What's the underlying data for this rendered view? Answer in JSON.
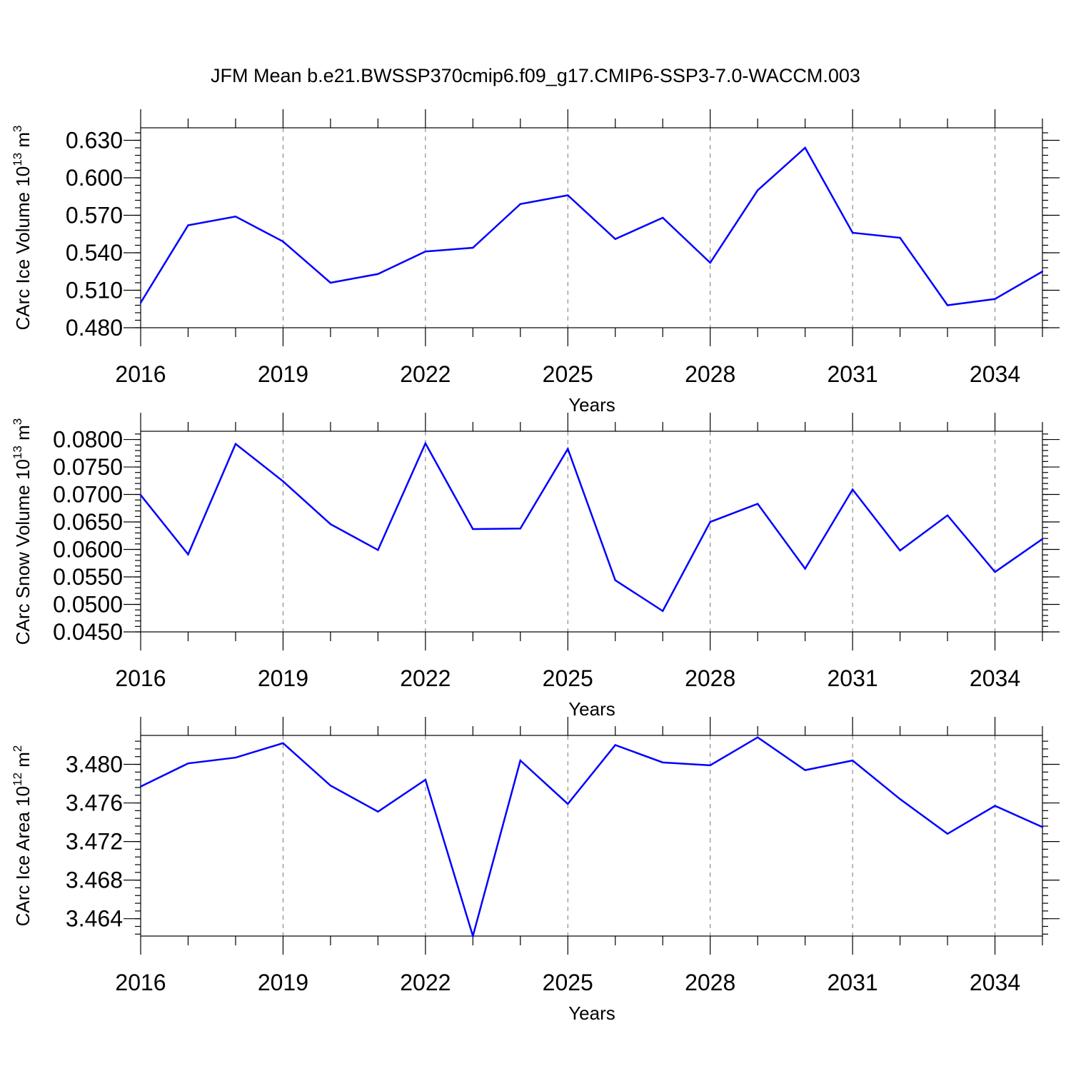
{
  "figure": {
    "title": "JFM Mean b.e21.BWSSP370cmip6.f09_g17.CMIP6-SSP3-7.0-WACCM.003",
    "line_color": "#0000ff"
  },
  "chart_data": [
    {
      "type": "line",
      "ylabel_main": "CArc Ice Volume 10",
      "ylabel_exp1": "13",
      "ylabel_unit": " m",
      "ylabel_exp2": "3",
      "xlabel": "Years",
      "xlim": [
        2016,
        2035
      ],
      "ylim": [
        0.48,
        0.64
      ],
      "yticks": [
        0.48,
        0.51,
        0.54,
        0.57,
        0.6,
        0.63
      ],
      "ytick_labels": [
        "0.480",
        "0.510",
        "0.540",
        "0.570",
        "0.600",
        "0.630"
      ],
      "yminor_step": 0.006,
      "xticks": [
        2016,
        2019,
        2022,
        2025,
        2028,
        2031,
        2034
      ],
      "xtick_labels": [
        "2016",
        "2019",
        "2022",
        "2025",
        "2028",
        "2031",
        "2034"
      ],
      "x": [
        2016,
        2017,
        2018,
        2019,
        2020,
        2021,
        2022,
        2023,
        2024,
        2025,
        2026,
        2027,
        2028,
        2029,
        2030,
        2031,
        2032,
        2033,
        2034,
        2035
      ],
      "values": [
        0.5,
        0.562,
        0.569,
        0.549,
        0.516,
        0.523,
        0.541,
        0.544,
        0.579,
        0.586,
        0.551,
        0.568,
        0.532,
        0.59,
        0.624,
        0.556,
        0.552,
        0.498,
        0.503,
        0.525
      ]
    },
    {
      "type": "line",
      "ylabel_main": "CArc Snow Volume 10",
      "ylabel_exp1": "13",
      "ylabel_unit": " m",
      "ylabel_exp2": "3",
      "xlabel": "Years",
      "xlim": [
        2016,
        2035
      ],
      "ylim": [
        0.045,
        0.0815
      ],
      "yticks": [
        0.045,
        0.05,
        0.055,
        0.06,
        0.065,
        0.07,
        0.075,
        0.08
      ],
      "ytick_labels": [
        "0.0450",
        "0.0500",
        "0.0550",
        "0.0600",
        "0.0650",
        "0.0700",
        "0.0750",
        "0.0800"
      ],
      "yminor_step": 0.001,
      "xticks": [
        2016,
        2019,
        2022,
        2025,
        2028,
        2031,
        2034
      ],
      "xtick_labels": [
        "2016",
        "2019",
        "2022",
        "2025",
        "2028",
        "2031",
        "2034"
      ],
      "x": [
        2016,
        2017,
        2018,
        2019,
        2020,
        2021,
        2022,
        2023,
        2024,
        2025,
        2026,
        2027,
        2028,
        2029,
        2030,
        2031,
        2032,
        2033,
        2034,
        2035
      ],
      "values": [
        0.0699,
        0.0591,
        0.0792,
        0.0724,
        0.0646,
        0.0599,
        0.0793,
        0.0637,
        0.0638,
        0.0783,
        0.0544,
        0.0488,
        0.065,
        0.0683,
        0.0565,
        0.0709,
        0.0598,
        0.0662,
        0.0559,
        0.0619
      ]
    },
    {
      "type": "line",
      "ylabel_main": "CArc Ice Area 10",
      "ylabel_exp1": "12",
      "ylabel_unit": " m",
      "ylabel_exp2": "2",
      "xlabel": "Years",
      "xlim": [
        2016,
        2035
      ],
      "ylim": [
        3.4622,
        3.483
      ],
      "yticks": [
        3.464,
        3.468,
        3.472,
        3.476,
        3.48
      ],
      "ytick_labels": [
        "3.464",
        "3.468",
        "3.472",
        "3.476",
        "3.480"
      ],
      "yminor_step": 0.0008,
      "xticks": [
        2016,
        2019,
        2022,
        2025,
        2028,
        2031,
        2034
      ],
      "xtick_labels": [
        "2016",
        "2019",
        "2022",
        "2025",
        "2028",
        "2031",
        "2034"
      ],
      "x": [
        2016,
        2017,
        2018,
        2019,
        2020,
        2021,
        2022,
        2023,
        2024,
        2025,
        2026,
        2027,
        2028,
        2029,
        2030,
        2031,
        2032,
        2033,
        2034,
        2035
      ],
      "values": [
        3.4777,
        3.4801,
        3.4807,
        3.4822,
        3.4778,
        3.4751,
        3.4784,
        3.4622,
        3.4804,
        3.4759,
        3.482,
        3.4802,
        3.4799,
        3.4828,
        3.4794,
        3.4804,
        3.4764,
        3.4728,
        3.4757,
        3.4735
      ]
    }
  ]
}
